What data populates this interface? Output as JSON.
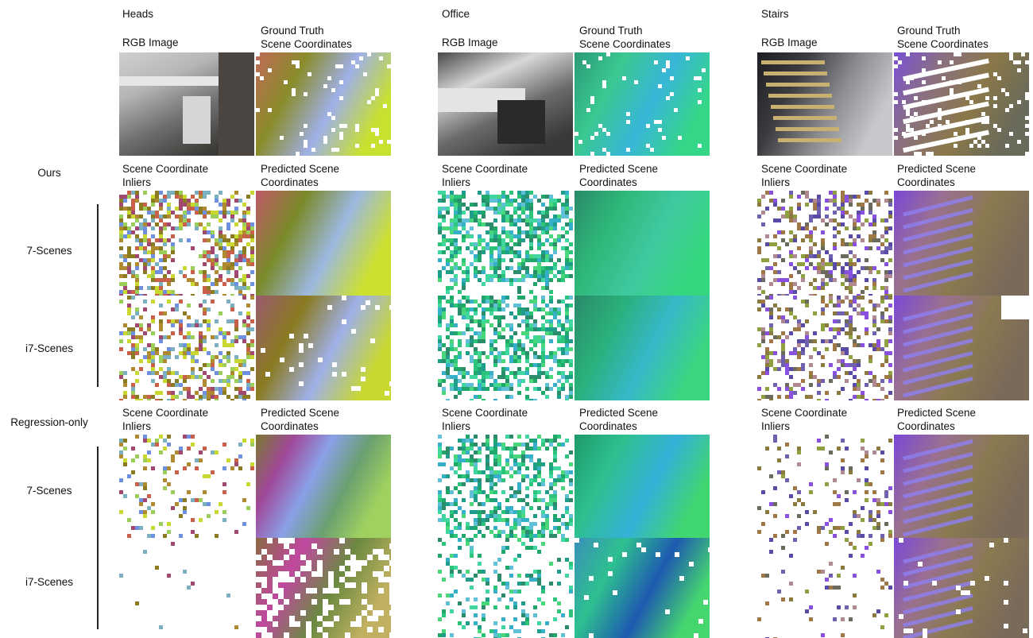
{
  "scenes": [
    {
      "title": "Heads",
      "rgb_label": "RGB Image",
      "gt_label": "Ground Truth\nScene Coordinates",
      "ours_inliers_label": "Scene Coordinate\nInliers",
      "ours_pred_label": "Predicted Scene\nCoordinates",
      "reg_inliers_label": "Scene Coordinate\nInliers",
      "reg_pred_label": "Predicted Scene\nCoordinates"
    },
    {
      "title": "Office",
      "rgb_label": "RGB Image",
      "gt_label": "Ground Truth\nScene Coordinates",
      "ours_inliers_label": "Scene Coordinate\nInliers",
      "ours_pred_label": "Predicted Scene\nCoordinates",
      "reg_inliers_label": "Scene Coordinate\nInliers",
      "reg_pred_label": "Predicted Scene\nCoordinates"
    },
    {
      "title": "Stairs",
      "rgb_label": "RGB Image",
      "gt_label": "Ground Truth\nScene Coordinates",
      "ours_inliers_label": "Scene Coordinate\nInliers",
      "ours_pred_label": "Predicted Scene\nCoordinates",
      "reg_inliers_label": "Scene Coordinate\nInliers",
      "reg_pred_label": "Predicted Scene\nCoordinates"
    }
  ],
  "row_labels": {
    "ours": "Ours",
    "ours_7scenes": "7-Scenes",
    "ours_i7scenes": "i7-Scenes",
    "regression": "Regression-only",
    "reg_7scenes": "7-Scenes",
    "reg_i7scenes": "i7-Scenes"
  },
  "palettes": {
    "heads": [
      "#c8604a",
      "#a04870",
      "#8a7a20",
      "#6f8fe0",
      "#9ccf5a",
      "#c9d830",
      "#7ab0c0",
      "#b08a30"
    ],
    "office": [
      "#1fa86a",
      "#2bc47a",
      "#3fd6a0",
      "#1e9e8a",
      "#35b0c8",
      "#4ad67a",
      "#2a8c6a",
      "#5fc0d8"
    ],
    "stairs": [
      "#8a50e0",
      "#7060b0",
      "#8a7a40",
      "#a07848",
      "#6b6a5c",
      "#b08890",
      "#8fa040",
      "#5a4aa8"
    ]
  }
}
